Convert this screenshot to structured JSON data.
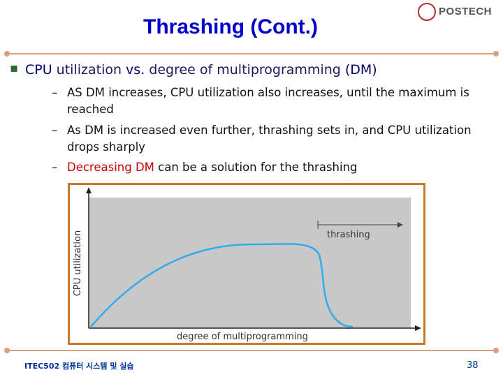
{
  "header": {
    "title": "Thrashing (Cont.)",
    "logo": "POSTECH"
  },
  "bullets": [
    {
      "parts": [
        "CPU ",
        "utilization",
        " vs. ",
        "degree of multiprogramming",
        " (DM)"
      ],
      "sub": [
        [
          "AS DM increases, CPU utilization also increases, until the maximum is reached"
        ],
        [
          "As DM is increased even further, thrashing sets in, and CPU utilization drops sharply"
        ],
        [
          "Decreasing DM",
          " can be a solution for the thrashing"
        ]
      ]
    }
  ],
  "figure": {
    "region_label": "thrashing",
    "x_label": "degree of multiprogramming",
    "y_label": "CPU utilization"
  },
  "footer": {
    "course": "ITEC502 컴퓨터 시스템 및 실습",
    "page": "38"
  }
}
